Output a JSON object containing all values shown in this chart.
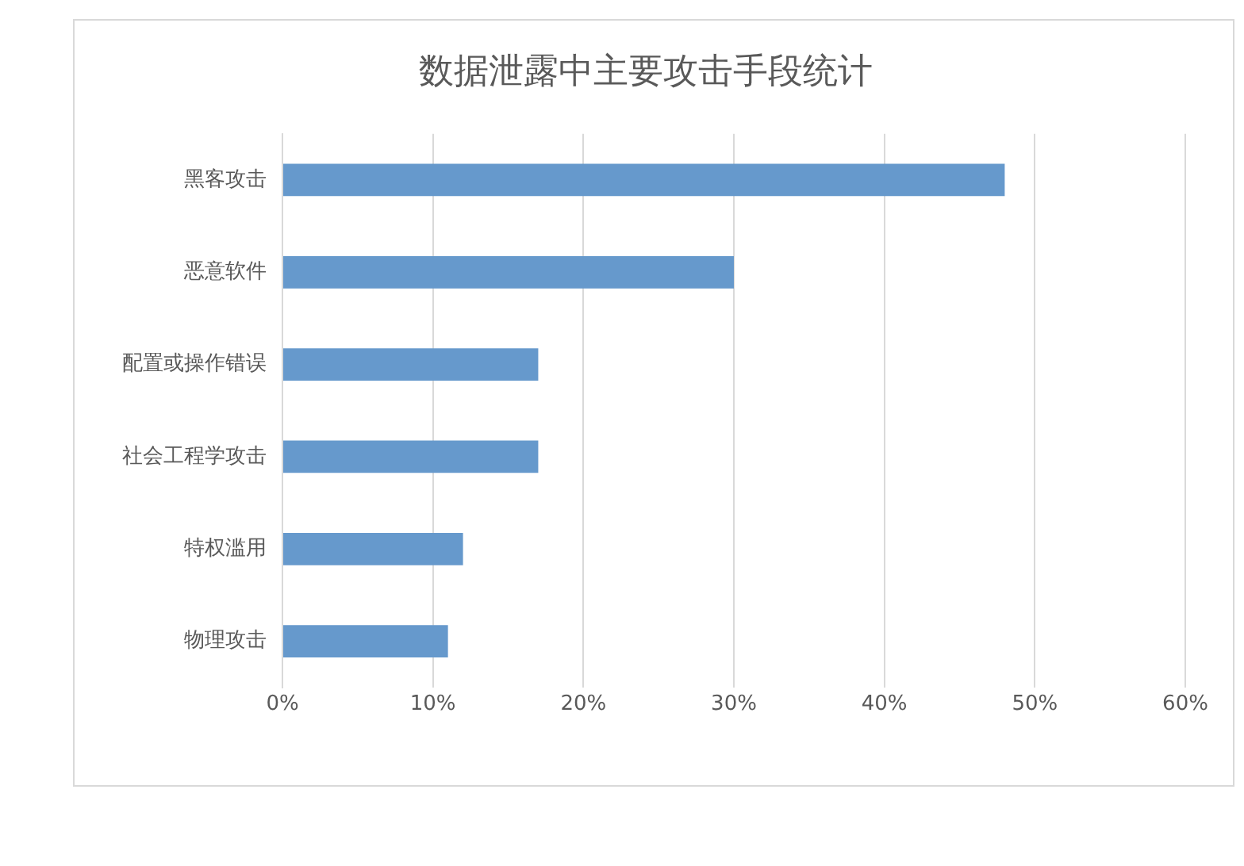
{
  "chart_data": {
    "type": "bar",
    "orientation": "horizontal",
    "title": "数据泄露中主要攻击手段统计",
    "categories": [
      "黑客攻击",
      "恶意软件",
      "配置或操作错误",
      "社会工程学攻击",
      "特权滥用",
      "物理攻击"
    ],
    "values": [
      48,
      30,
      17,
      17,
      12,
      11
    ],
    "color": "#6699cc",
    "xlim": [
      0,
      60
    ],
    "xticks": [
      {
        "value": 0,
        "label": "0%"
      },
      {
        "value": 10,
        "label": "10%"
      },
      {
        "value": 20,
        "label": "20%"
      },
      {
        "value": 30,
        "label": "30%"
      },
      {
        "value": 40,
        "label": "40%"
      },
      {
        "value": 50,
        "label": "50%"
      },
      {
        "value": 60,
        "label": "60%"
      }
    ],
    "grid": "x",
    "legend": false
  }
}
